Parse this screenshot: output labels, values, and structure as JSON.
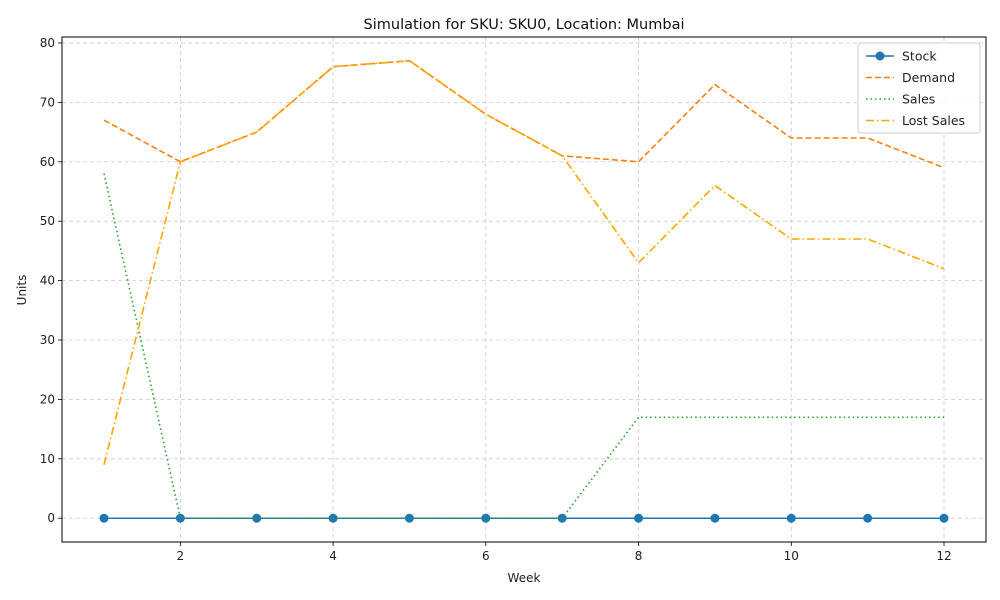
{
  "chart_data": {
    "type": "line",
    "title": "Simulation for SKU: SKU0, Location: Mumbai",
    "xlabel": "Week",
    "ylabel": "Units",
    "x": [
      1,
      2,
      3,
      4,
      5,
      6,
      7,
      8,
      9,
      10,
      11,
      12
    ],
    "xlim": [
      0.45,
      12.55
    ],
    "ylim": [
      -4,
      81
    ],
    "xticks": [
      2,
      4,
      6,
      8,
      10,
      12
    ],
    "yticks": [
      0,
      10,
      20,
      30,
      40,
      50,
      60,
      70,
      80
    ],
    "grid": true,
    "legend_position": "top-right",
    "series": [
      {
        "name": "Stock",
        "values": [
          0,
          0,
          0,
          0,
          0,
          0,
          0,
          0,
          0,
          0,
          0,
          0
        ],
        "color": "#1f77b4",
        "style": "solid",
        "marker": "circle"
      },
      {
        "name": "Demand",
        "values": [
          67,
          60,
          65,
          76,
          77,
          68,
          61,
          60,
          73,
          64,
          64,
          59
        ],
        "color": "#ff7f0e",
        "style": "dashed",
        "marker": "none"
      },
      {
        "name": "Sales",
        "values": [
          58,
          0,
          0,
          0,
          0,
          0,
          0,
          17,
          17,
          17,
          17,
          17
        ],
        "color": "#2ca02c",
        "style": "dotted",
        "marker": "none"
      },
      {
        "name": "Lost Sales",
        "values": [
          9,
          60,
          65,
          76,
          77,
          68,
          61,
          43,
          56,
          47,
          47,
          42
        ],
        "color": "#ffa500",
        "style": "dashdot",
        "marker": "none"
      }
    ]
  }
}
